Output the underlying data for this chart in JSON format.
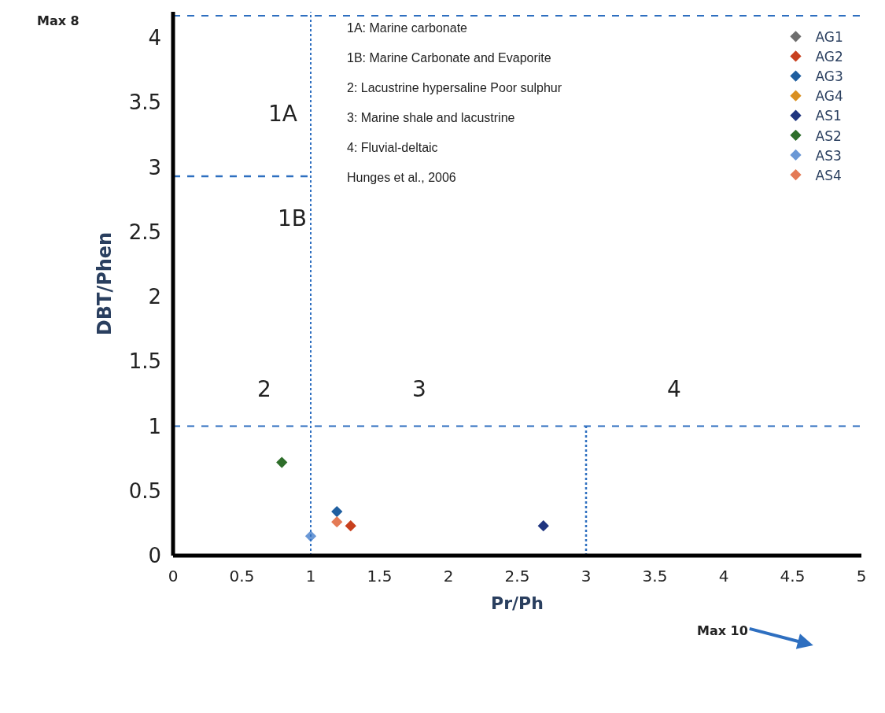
{
  "chart_data": {
    "type": "scatter",
    "xlabel": "Pr/Ph",
    "ylabel": "DBT/Phen",
    "xlim": [
      0,
      5
    ],
    "xticks": [
      0,
      0.5,
      1,
      1.5,
      2,
      2.5,
      3,
      3.5,
      4,
      4.5,
      5
    ],
    "ylim": [
      0,
      4.2
    ],
    "yticks": [
      0,
      0.5,
      1,
      1.5,
      2,
      2.5,
      3,
      3.5,
      4
    ],
    "marker": "diamond",
    "legend": "top right",
    "series": [
      {
        "name": "AG1",
        "color": "#6e6e6e",
        "x": [
          null
        ],
        "values": [
          null
        ]
      },
      {
        "name": "AG2",
        "color": "#c8401e",
        "x": [
          1.29
        ],
        "values": [
          0.23
        ]
      },
      {
        "name": "AG3",
        "color": "#1f5fa0",
        "x": [
          1.19
        ],
        "values": [
          0.34
        ]
      },
      {
        "name": "AG4",
        "color": "#d99022",
        "x": [
          null
        ],
        "values": [
          null
        ]
      },
      {
        "name": "AS1",
        "color": "#1f3580",
        "x": [
          2.69
        ],
        "values": [
          0.23
        ]
      },
      {
        "name": "AS2",
        "color": "#2e6e2a",
        "x": [
          0.79
        ],
        "values": [
          0.72
        ]
      },
      {
        "name": "AS3",
        "color": "#6a98d6",
        "x": [
          1.0
        ],
        "values": [
          0.15
        ]
      },
      {
        "name": "AS4",
        "color": "#e47a55",
        "x": [
          1.19
        ],
        "values": [
          0.26
        ]
      },
      {
        "type": "line",
        "color": "#2e6fc0",
        "line_style": "dashed",
        "marker": "none",
        "x": [
          0,
          1
        ],
        "values": [
          2.93,
          2.93
        ]
      },
      {
        "type": "line",
        "color": "#2e6fc0",
        "line_style": "dotted",
        "marker": "none",
        "x": [
          3,
          3
        ],
        "values": [
          0,
          1
        ]
      }
    ],
    "ref_lines": [
      {
        "axis": "x",
        "value": 1,
        "color": "#2e6fc0",
        "line_style": "dotted"
      },
      {
        "axis": "y",
        "value": 1,
        "color": "#2e6fc0",
        "line_style": "dashed"
      },
      {
        "axis": "y",
        "value": 4.17,
        "color": "#2e6fc0",
        "line_style": "dashed"
      }
    ],
    "annotations": [
      "1A",
      "1B",
      "2",
      "3",
      "4",
      "1A: Marine carbonate",
      "1B: Marine Carbonate and Evaporite",
      "2: Lacustrine hypersaline Poor sulphur",
      "3: Marine shale and lacustrine",
      "4: Fluvial-deltaic",
      "Hunges et al., 2006",
      "Max 8",
      "Max 10"
    ]
  }
}
